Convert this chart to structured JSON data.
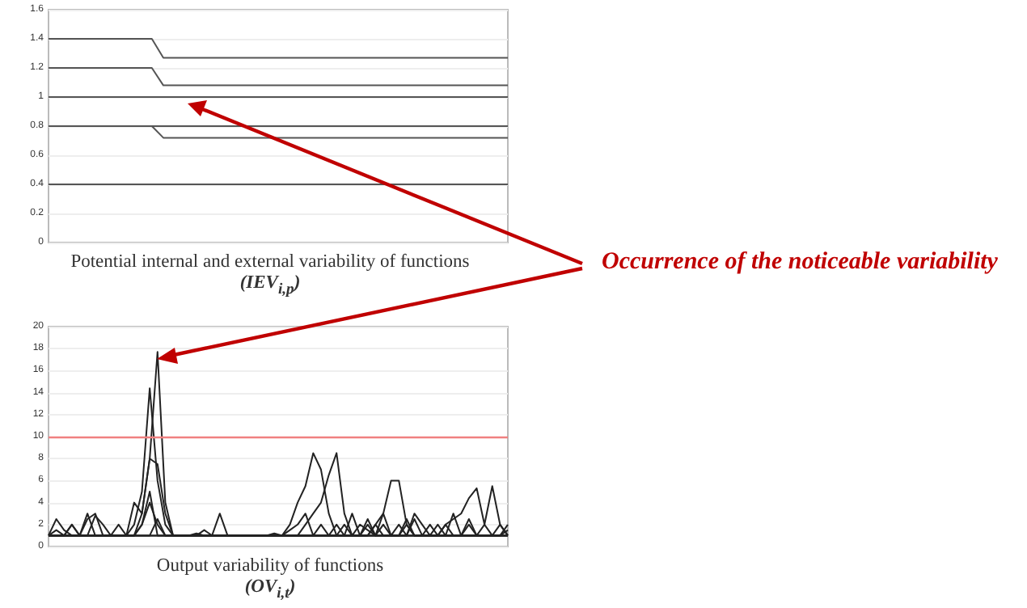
{
  "chart_data": [
    {
      "type": "line",
      "title": "Potential internal and external variability of functions",
      "subtitle": "(IEV$_{i,p}$)",
      "categories": [
        null,
        null,
        null,
        null,
        null,
        null,
        null,
        null,
        null,
        null,
        null,
        null,
        null,
        null,
        null,
        null,
        null,
        null,
        null,
        null,
        null,
        null,
        null,
        null,
        null,
        null,
        null,
        null,
        null,
        null,
        null,
        null,
        null,
        null,
        null,
        null,
        null,
        null,
        null,
        null,
        null
      ],
      "series": [
        {
          "color": "#555555",
          "values": [
            1.4,
            1.4,
            1.4,
            1.4,
            1.4,
            1.4,
            1.4,
            1.4,
            1.4,
            1.4,
            1.27,
            1.27,
            1.27,
            1.27,
            1.27,
            1.27,
            1.27,
            1.27,
            1.27,
            1.27,
            1.27,
            1.27,
            1.27,
            1.27,
            1.27,
            1.27,
            1.27,
            1.27,
            1.27,
            1.27,
            1.27,
            1.27,
            1.27,
            1.27,
            1.27,
            1.27,
            1.27,
            1.27,
            1.27,
            1.27,
            1.27
          ]
        },
        {
          "color": "#555555",
          "values": [
            1.2,
            1.2,
            1.2,
            1.2,
            1.2,
            1.2,
            1.2,
            1.2,
            1.2,
            1.2,
            1.08,
            1.08,
            1.08,
            1.08,
            1.08,
            1.08,
            1.08,
            1.08,
            1.08,
            1.08,
            1.08,
            1.08,
            1.08,
            1.08,
            1.08,
            1.08,
            1.08,
            1.08,
            1.08,
            1.08,
            1.08,
            1.08,
            1.08,
            1.08,
            1.08,
            1.08,
            1.08,
            1.08,
            1.08,
            1.08,
            1.08
          ]
        },
        {
          "color": "#555555",
          "values": [
            1,
            1,
            1,
            1,
            1,
            1,
            1,
            1,
            1,
            1,
            1,
            1,
            1,
            1,
            1,
            1,
            1,
            1,
            1,
            1,
            1,
            1,
            1,
            1,
            1,
            1,
            1,
            1,
            1,
            1,
            1,
            1,
            1,
            1,
            1,
            1,
            1,
            1,
            1,
            1,
            1
          ]
        },
        {
          "color": "#555555",
          "values": [
            0.8,
            0.8,
            0.8,
            0.8,
            0.8,
            0.8,
            0.8,
            0.8,
            0.8,
            0.8,
            0.8,
            0.8,
            0.8,
            0.8,
            0.8,
            0.8,
            0.8,
            0.8,
            0.8,
            0.8,
            0.8,
            0.8,
            0.8,
            0.8,
            0.8,
            0.8,
            0.8,
            0.8,
            0.8,
            0.8,
            0.8,
            0.8,
            0.8,
            0.8,
            0.8,
            0.8,
            0.8,
            0.8,
            0.8,
            0.8,
            0.8
          ]
        },
        {
          "color": "#555555",
          "values": [
            0.8,
            0.8,
            0.8,
            0.8,
            0.8,
            0.8,
            0.8,
            0.8,
            0.8,
            0.8,
            0.72,
            0.72,
            0.72,
            0.72,
            0.72,
            0.72,
            0.72,
            0.72,
            0.72,
            0.72,
            0.72,
            0.72,
            0.72,
            0.72,
            0.72,
            0.72,
            0.72,
            0.72,
            0.72,
            0.72,
            0.72,
            0.72,
            0.72,
            0.72,
            0.72,
            0.72,
            0.72,
            0.72,
            0.72,
            0.72,
            0.72
          ]
        },
        {
          "color": "#555555",
          "values": [
            0.4,
            0.4,
            0.4,
            0.4,
            0.4,
            0.4,
            0.4,
            0.4,
            0.4,
            0.4,
            0.4,
            0.4,
            0.4,
            0.4,
            0.4,
            0.4,
            0.4,
            0.4,
            0.4,
            0.4,
            0.4,
            0.4,
            0.4,
            0.4,
            0.4,
            0.4,
            0.4,
            0.4,
            0.4,
            0.4,
            0.4,
            0.4,
            0.4,
            0.4,
            0.4,
            0.4,
            0.4,
            0.4,
            0.4,
            0.4,
            0.4
          ]
        }
      ],
      "ylim": [
        0,
        1.6
      ],
      "yticks": [
        0,
        0.2,
        0.4,
        0.6,
        0.8,
        1,
        1.2,
        1.4,
        1.6
      ],
      "grid": "y",
      "tick_labels": "y",
      "annotations": [
        "Occurrence of the noticeable variability"
      ]
    },
    {
      "type": "line",
      "title": "Output variability of functions",
      "subtitle": "(OV$_{i,t}$)",
      "categories": [
        null,
        null,
        null,
        null,
        null,
        null,
        null,
        null,
        null,
        null,
        null,
        null,
        null,
        null,
        null,
        null,
        null,
        null,
        null,
        null,
        null,
        null,
        null,
        null,
        null,
        null,
        null,
        null,
        null,
        null,
        null,
        null,
        null,
        null,
        null,
        null,
        null,
        null,
        null,
        null,
        null,
        null,
        null,
        null,
        null,
        null,
        null,
        null,
        null,
        null,
        null,
        null,
        null,
        null,
        null,
        null,
        null,
        null,
        null,
        null
      ],
      "series": [
        {
          "color": "#222222",
          "values": [
            1,
            2.5,
            1.5,
            1,
            1,
            1,
            1,
            1,
            1,
            1,
            1,
            1,
            3,
            8,
            17.7,
            4,
            1,
            1,
            1,
            1,
            1.5,
            1,
            1,
            1,
            1,
            1,
            1,
            1,
            1,
            1,
            1,
            1,
            1,
            1,
            1,
            1,
            1,
            1,
            1,
            1,
            1,
            1,
            1,
            1,
            1,
            1,
            1,
            1,
            1,
            1,
            1,
            1,
            1,
            1,
            1,
            1,
            1,
            1,
            1,
            1
          ]
        },
        {
          "color": "#222222",
          "values": [
            1,
            1,
            1,
            2,
            1,
            1,
            2.8,
            2,
            1,
            1,
            1,
            2,
            5,
            14.4,
            6,
            2,
            1,
            1,
            1,
            1,
            1,
            1,
            3,
            1,
            1,
            1,
            1,
            1,
            1,
            1,
            1,
            1,
            1,
            1,
            1,
            1,
            1,
            1,
            1,
            1,
            1,
            1,
            2,
            1,
            1,
            1,
            1,
            2.5,
            1,
            1,
            1,
            1,
            1,
            1,
            1,
            1,
            1,
            1,
            1,
            1
          ]
        },
        {
          "color": "#222222",
          "values": [
            1,
            1,
            1,
            1,
            1,
            2.5,
            3,
            1,
            1,
            1,
            1,
            4,
            3,
            8,
            7.5,
            3,
            1,
            1,
            1,
            1,
            1,
            1,
            1,
            1,
            1,
            1,
            1,
            1,
            1,
            1.2,
            1,
            1,
            1,
            1,
            1,
            1,
            1,
            1,
            2,
            1,
            1,
            2.5,
            1,
            1,
            1,
            1,
            1,
            1,
            1,
            1,
            1,
            2,
            1,
            1,
            1,
            1,
            1,
            1,
            2,
            1
          ]
        },
        {
          "color": "#222222",
          "values": [
            1,
            1,
            1,
            1,
            1,
            1,
            1,
            1,
            1,
            1,
            1,
            1,
            1,
            1,
            1,
            1,
            1,
            1,
            1,
            1.2,
            1,
            1,
            1,
            1,
            1,
            1,
            1,
            1,
            1,
            1,
            1,
            2,
            4,
            5.5,
            8.5,
            7,
            3,
            1,
            1,
            1,
            1,
            1,
            1,
            1,
            1,
            1,
            2,
            1,
            1,
            1,
            1,
            1,
            1,
            1,
            2.5,
            1,
            1,
            1,
            1,
            1
          ]
        },
        {
          "color": "#222222",
          "values": [
            1,
            1,
            1,
            1,
            1,
            1,
            1,
            1,
            1,
            2,
            1,
            1,
            1,
            1,
            2.5,
            1,
            1,
            1,
            1,
            1,
            1,
            1,
            1,
            1,
            1,
            1,
            1,
            1,
            1,
            1,
            1,
            1,
            1,
            2,
            3,
            4,
            6.5,
            8.5,
            3,
            1,
            1,
            1,
            2,
            3,
            1,
            1,
            1,
            1,
            1,
            1,
            1,
            1,
            1,
            1,
            1,
            1,
            1,
            1,
            1,
            1
          ]
        },
        {
          "color": "#222222",
          "values": [
            1,
            1,
            1,
            1,
            1,
            1,
            1,
            1,
            1,
            1,
            1,
            1,
            2,
            5,
            1,
            1,
            1,
            1,
            1,
            1,
            1,
            1,
            1,
            1,
            1,
            1,
            1,
            1,
            1,
            1,
            1,
            1,
            1,
            1,
            1,
            1,
            1,
            2,
            1,
            1,
            2,
            1.5,
            1,
            3,
            6,
            6,
            2,
            1,
            1,
            2,
            1,
            1,
            1,
            1,
            1,
            1,
            1,
            1,
            1,
            1.5
          ]
        },
        {
          "color": "#222222",
          "values": [
            1,
            1,
            1,
            1,
            1,
            1,
            1,
            1,
            1,
            1,
            1,
            1,
            1,
            1,
            1,
            1,
            1,
            1,
            1,
            1,
            1,
            1,
            1,
            1,
            1,
            1,
            1,
            1,
            1,
            1,
            1,
            1,
            1,
            1,
            1,
            1,
            1,
            1,
            1,
            1,
            1,
            1,
            1,
            1,
            1,
            1,
            2.5,
            1,
            1,
            1,
            1,
            2,
            2.5,
            3,
            4.4,
            5.3,
            2,
            5.5,
            2,
            1
          ]
        },
        {
          "color": "#222222",
          "values": [
            1,
            1.5,
            1,
            2,
            1,
            3,
            1,
            1,
            1,
            1,
            1,
            1,
            2,
            4,
            2,
            1,
            1,
            1,
            1,
            1,
            1,
            1,
            1,
            1,
            1,
            1,
            1,
            1,
            1,
            1,
            1,
            1.5,
            2,
            3,
            1,
            2,
            1,
            1,
            1,
            3,
            1,
            2,
            1,
            2,
            1,
            2,
            1,
            3,
            2,
            1,
            2,
            1,
            3,
            1,
            2,
            1,
            2,
            1,
            1,
            2
          ]
        }
      ],
      "ylim": [
        0,
        20
      ],
      "yticks": [
        0,
        2,
        4,
        6,
        8,
        10,
        12,
        14,
        16,
        18,
        20
      ],
      "grid": "y",
      "tick_labels": "y",
      "ref_lines": [
        {
          "axis": "y",
          "value": 10,
          "color": "#f08080"
        }
      ]
    }
  ]
}
